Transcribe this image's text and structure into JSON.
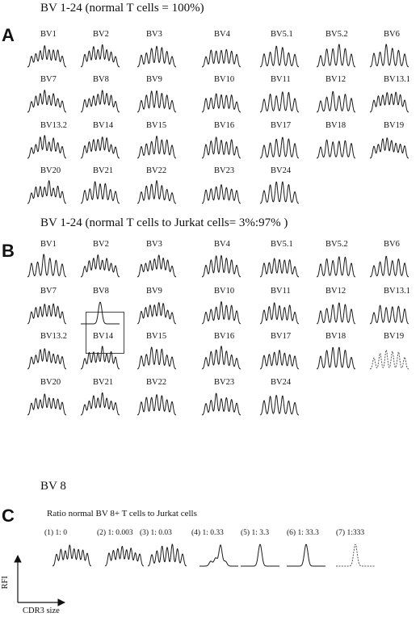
{
  "panels": {
    "A": {
      "letter": "A",
      "title": "BV 1-24 (normal T cells = 100%)",
      "labels": [
        "BV1",
        "BV2",
        "BV3",
        "BV4",
        "BV5.1",
        "BV5.2",
        "BV6",
        "BV7",
        "BV8",
        "BV9",
        "BV10",
        "BV11",
        "BV12",
        "BV13.1",
        "BV13.2",
        "BV14",
        "BV15",
        "BV16",
        "BV17",
        "BV18",
        "BV19",
        "BV20",
        "BV21",
        "BV22",
        "BV23",
        "BV24"
      ]
    },
    "B": {
      "letter": "B",
      "title": "BV 1-24 (normal T cells to Jurkat cells= 3%:97% )",
      "labels": [
        "BV1",
        "BV2",
        "BV3",
        "BV4",
        "BV5.1",
        "BV5.2",
        "BV6",
        "BV7",
        "BV8",
        "BV9",
        "BV10",
        "BV11",
        "BV12",
        "BV13.1",
        "BV13.2",
        "BV14",
        "BV15",
        "BV16",
        "BV17",
        "BV18",
        "BV19",
        "BV20",
        "BV21",
        "BV22",
        "BV23",
        "BV24"
      ],
      "highlighted": "BV8"
    },
    "C": {
      "letter": "C",
      "heading": "BV 8",
      "title": "Ratio normal BV 8+ T cells to Jurkat cells",
      "ratios": [
        "(1) 1: 0",
        "(2) 1: 0.003",
        "(3) 1: 0.03",
        "(4) 1: 0.33",
        "(5) 1: 3.3",
        "(6) 1: 33.3",
        "(7) 1:333"
      ],
      "y_axis_label": "RFI",
      "x_axis_label": "CDR3 size"
    }
  },
  "colors": {
    "ink": "#1a1a1a",
    "background": "#ffffff"
  }
}
